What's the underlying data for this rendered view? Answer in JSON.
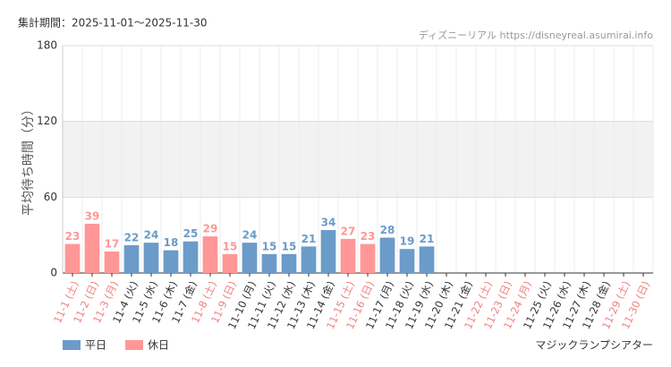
{
  "chart_data": {
    "type": "bar",
    "title": "集計期間：2025-11-01～2025-11-30",
    "source": "ディズニーリアル https://disneyreal.asumirai.info",
    "y_label": "平均待ち時間（分）",
    "caption": "マジックランプシアター",
    "categories": [
      "11-1 (土)",
      "11-2 (日)",
      "11-3 (月)",
      "11-4 (火)",
      "11-5 (水)",
      "11-6 (木)",
      "11-7 (金)",
      "11-8 (土)",
      "11-9 (日)",
      "11-10 (月)",
      "11-11 (火)",
      "11-12 (水)",
      "11-13 (木)",
      "11-14 (金)",
      "11-15 (土)",
      "11-16 (日)",
      "11-17 (月)",
      "11-18 (火)",
      "11-19 (水)",
      "11-20 (木)",
      "11-21 (金)",
      "11-22 (土)",
      "11-23 (日)",
      "11-24 (月)",
      "11-25 (火)",
      "11-26 (水)",
      "11-27 (木)",
      "11-28 (金)",
      "11-29 (土)",
      "11-30 (日)"
    ],
    "category_colors": [
      "#f08080",
      "#f08080",
      "#f08080",
      "#333333",
      "#333333",
      "#333333",
      "#333333",
      "#f08080",
      "#f08080",
      "#333333",
      "#333333",
      "#333333",
      "#333333",
      "#333333",
      "#f08080",
      "#f08080",
      "#333333",
      "#333333",
      "#333333",
      "#333333",
      "#333333",
      "#f08080",
      "#f08080",
      "#f08080",
      "#333333",
      "#333333",
      "#333333",
      "#333333",
      "#f08080",
      "#f08080"
    ],
    "series": [
      {
        "name": "平日",
        "color": "#6b9bc9",
        "values": [
          null,
          null,
          null,
          22,
          24,
          18,
          25,
          null,
          null,
          24,
          15,
          15,
          21,
          34,
          null,
          null,
          28,
          19,
          21,
          null,
          null,
          null,
          null,
          null,
          null,
          null,
          null,
          null,
          null,
          null
        ]
      },
      {
        "name": "休日",
        "color": "#ff9797",
        "values": [
          23,
          39,
          17,
          null,
          null,
          null,
          null,
          29,
          15,
          null,
          null,
          null,
          null,
          null,
          27,
          23,
          null,
          null,
          null,
          null,
          null,
          null,
          null,
          null,
          null,
          null,
          null,
          null,
          null,
          null
        ]
      }
    ],
    "ylim": [
      0,
      180
    ],
    "yticks": [
      0,
      60,
      120,
      180
    ],
    "grid": true
  }
}
